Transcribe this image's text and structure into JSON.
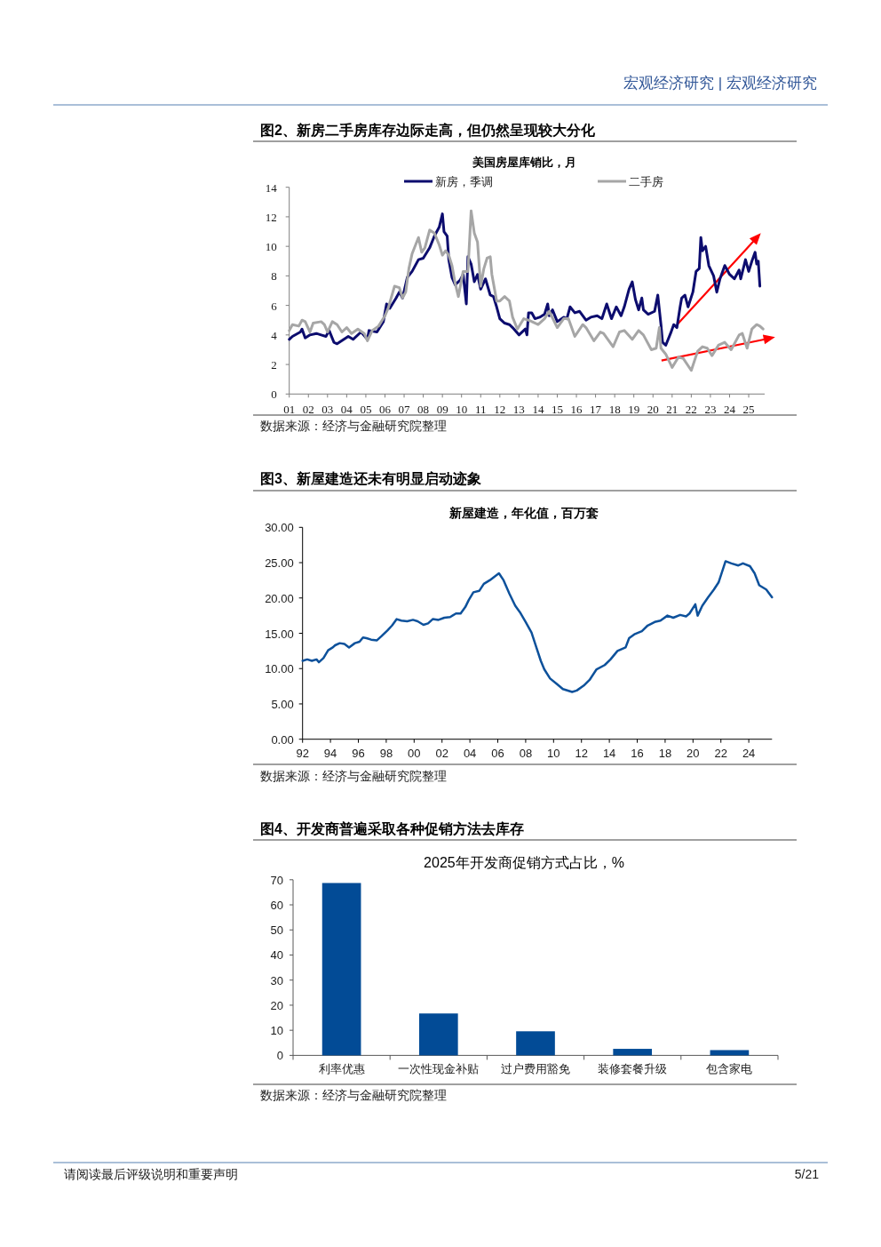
{
  "chart_data": [
    {
      "type": "line",
      "title": "图2、新房二手房库存边际走高，但仍然呈现较大分化",
      "subtitle": "美国房屋库销比，月",
      "legend": "top",
      "series": [
        {
          "name": "新房，季调",
          "color": "#0c0c6e",
          "x": [
            "2001-01",
            "2001-03",
            "2001-08",
            "2001-09",
            "2001-11",
            "2002-02",
            "2002-06",
            "2002-09",
            "2002-12",
            "2003-02",
            "2003-05",
            "2003-07",
            "2004-02",
            "2004-05",
            "2004-10",
            "2005-02",
            "2005-03",
            "2005-08",
            "2005-12",
            "2006-02",
            "2006-04",
            "2006-08",
            "2006-10",
            "2006-12",
            "2007-03",
            "2007-06",
            "2007-10",
            "2008-01",
            "2008-05",
            "2008-08",
            "2008-11",
            "2009-01",
            "2009-02",
            "2009-04",
            "2009-05",
            "2009-07",
            "2009-09",
            "2009-12",
            "2010-02",
            "2010-04",
            "2010-05",
            "2010-07",
            "2010-09",
            "2010-11",
            "2011-01",
            "2011-04",
            "2011-07",
            "2011-09",
            "2011-11",
            "2012-01",
            "2012-04",
            "2012-07",
            "2012-09",
            "2013-01",
            "2013-05",
            "2013-06",
            "2013-07",
            "2013-09",
            "2013-11",
            "2014-02",
            "2014-05",
            "2014-07",
            "2014-08",
            "2014-10",
            "2015-01",
            "2015-05",
            "2015-07",
            "2015-09",
            "2015-12",
            "2016-03",
            "2016-07",
            "2016-10",
            "2017-02",
            "2017-05",
            "2017-08",
            "2017-11",
            "2018-02",
            "2018-05",
            "2018-07",
            "2018-10",
            "2018-12",
            "2019-02",
            "2019-04",
            "2019-06",
            "2019-07",
            "2019-10",
            "2020-02",
            "2020-04",
            "2020-06",
            "2020-07",
            "2020-09",
            "2020-12",
            "2021-02",
            "2021-04",
            "2021-06",
            "2021-07",
            "2021-09",
            "2021-11",
            "2022-02",
            "2022-04",
            "2022-06",
            "2022-07",
            "2022-08",
            "2022-10",
            "2022-12",
            "2023-03",
            "2023-05",
            "2023-07",
            "2023-10",
            "2024-01",
            "2024-04",
            "2024-07",
            "2024-08",
            "2024-11",
            "2025-01",
            "2025-03",
            "2025-05",
            "2025-06",
            "2025-07",
            "2025-08"
          ],
          "values": [
            3.7,
            3.9,
            4.2,
            4.4,
            3.8,
            4.0,
            4.1,
            4.0,
            3.9,
            4.3,
            3.5,
            3.4,
            3.9,
            3.7,
            4.2,
            3.7,
            4.3,
            4.2,
            4.9,
            6.1,
            5.8,
            6.5,
            6.9,
            6.5,
            7.9,
            8.3,
            9.1,
            9.2,
            9.9,
            10.7,
            11.3,
            12.2,
            11.0,
            10.7,
            9.1,
            7.9,
            7.4,
            7.7,
            8.1,
            6.1,
            9.3,
            8.8,
            7.6,
            8.1,
            7.1,
            7.8,
            6.7,
            6.6,
            5.9,
            5.1,
            4.8,
            4.7,
            4.5,
            4.0,
            4.4,
            4.0,
            5.5,
            5.5,
            5.1,
            5.2,
            5.4,
            6.1,
            5.3,
            5.7,
            4.9,
            5.2,
            5.1,
            5.9,
            5.5,
            5.6,
            5.0,
            5.2,
            5.3,
            5.1,
            6.1,
            5.1,
            5.9,
            5.3,
            5.9,
            7.1,
            7.6,
            6.4,
            5.7,
            6.5,
            5.7,
            5.4,
            5.6,
            6.7,
            4.7,
            3.5,
            3.3,
            4.1,
            4.7,
            4.5,
            5.9,
            6.5,
            6.7,
            5.9,
            6.9,
            8.3,
            8.5,
            10.6,
            9.7,
            10.0,
            8.7,
            8.0,
            6.9,
            7.8,
            8.7,
            8.1,
            7.8,
            8.4,
            7.8,
            9.1,
            8.3,
            9.0,
            9.6,
            8.8,
            9.0,
            7.3
          ]
        },
        {
          "name": "二手房",
          "color": "#a6a6a6",
          "x": [
            "2001-01",
            "2001-03",
            "2001-07",
            "2001-09",
            "2001-11",
            "2002-02",
            "2002-04",
            "2002-09",
            "2002-11",
            "2003-01",
            "2003-04",
            "2003-07",
            "2003-10",
            "2004-01",
            "2004-04",
            "2004-08",
            "2004-12",
            "2005-02",
            "2005-05",
            "2005-09",
            "2006-01",
            "2006-03",
            "2006-07",
            "2006-10",
            "2006-12",
            "2007-02",
            "2007-04",
            "2007-06",
            "2007-10",
            "2007-12",
            "2008-02",
            "2008-05",
            "2008-08",
            "2008-11",
            "2009-01",
            "2009-03",
            "2009-05",
            "2009-07",
            "2009-09",
            "2009-11",
            "2010-02",
            "2010-05",
            "2010-07",
            "2010-09",
            "2010-11",
            "2011-01",
            "2011-03",
            "2011-05",
            "2011-07",
            "2011-08",
            "2011-11",
            "2012-01",
            "2012-04",
            "2012-07",
            "2012-09",
            "2012-12",
            "2013-04",
            "2013-07",
            "2014-01",
            "2014-05",
            "2014-08",
            "2015-01",
            "2015-05",
            "2015-08",
            "2015-12",
            "2016-05",
            "2016-07",
            "2016-12",
            "2017-04",
            "2017-06",
            "2017-12",
            "2018-04",
            "2018-07",
            "2018-12",
            "2019-04",
            "2019-07",
            "2019-12",
            "2020-03",
            "2020-05",
            "2020-06",
            "2020-09",
            "2021-01",
            "2021-05",
            "2021-08",
            "2022-01",
            "2022-05",
            "2022-08",
            "2022-11",
            "2023-02",
            "2023-06",
            "2023-10",
            "2024-02",
            "2024-07",
            "2024-09",
            "2024-12",
            "2025-03",
            "2025-06",
            "2025-08",
            "2025-10"
          ],
          "values": [
            4.3,
            4.7,
            4.6,
            5.0,
            4.9,
            4.2,
            4.8,
            4.9,
            4.7,
            4.2,
            4.9,
            4.7,
            4.2,
            4.5,
            4.1,
            4.4,
            4.1,
            3.6,
            4.3,
            4.6,
            5.3,
            5.8,
            7.3,
            7.2,
            6.5,
            6.9,
            8.5,
            9.5,
            10.6,
            9.6,
            9.9,
            11.1,
            10.9,
            10.1,
            9.4,
            9.7,
            9.4,
            8.7,
            7.5,
            6.6,
            8.3,
            8.3,
            12.4,
            10.9,
            10.3,
            7.3,
            8.5,
            9.2,
            9.3,
            8.1,
            6.3,
            6.3,
            6.6,
            6.3,
            5.2,
            4.4,
            5.1,
            5.0,
            4.7,
            5.1,
            5.6,
            4.5,
            5.1,
            5.1,
            3.9,
            4.7,
            4.5,
            3.6,
            4.2,
            4.1,
            3.2,
            4.2,
            4.3,
            3.7,
            4.3,
            4.0,
            3.0,
            3.1,
            4.5,
            3.1,
            2.7,
            1.8,
            2.5,
            2.4,
            1.6,
            2.9,
            3.2,
            3.1,
            2.6,
            3.3,
            3.5,
            3.0,
            4.0,
            4.1,
            3.1,
            4.4,
            4.7,
            4.6,
            4.4
          ]
        }
      ],
      "xlim": [
        "2001-01",
        "2025-11"
      ],
      "xticks": [
        {
          "value": "2001-01",
          "label": "01"
        },
        {
          "value": "2002-01",
          "label": "02"
        },
        {
          "value": "2003-01",
          "label": "03"
        },
        {
          "value": "2004-01",
          "label": "04"
        },
        {
          "value": "2005-01",
          "label": "05"
        },
        {
          "value": "2006-01",
          "label": "06"
        },
        {
          "value": "2007-01",
          "label": "07"
        },
        {
          "value": "2008-01",
          "label": "08"
        },
        {
          "value": "2009-01",
          "label": "09"
        },
        {
          "value": "2010-01",
          "label": "10"
        },
        {
          "value": "2011-01",
          "label": "11"
        },
        {
          "value": "2012-01",
          "label": "12"
        },
        {
          "value": "2013-01",
          "label": "13"
        },
        {
          "value": "2014-01",
          "label": "14"
        },
        {
          "value": "2015-01",
          "label": "15"
        },
        {
          "value": "2016-01",
          "label": "16"
        },
        {
          "value": "2017-01",
          "label": "17"
        },
        {
          "value": "2018-01",
          "label": "18"
        },
        {
          "value": "2019-01",
          "label": "19"
        },
        {
          "value": "2020-01",
          "label": "20"
        },
        {
          "value": "2021-01",
          "label": "21"
        },
        {
          "value": "2022-01",
          "label": "22"
        },
        {
          "value": "2023-01",
          "label": "23"
        },
        {
          "value": "2024-01",
          "label": "24"
        },
        {
          "value": "2025-01",
          "label": "25"
        }
      ],
      "ylim": [
        0,
        14
      ],
      "yticks": [
        0,
        2,
        4,
        6,
        8,
        10,
        12,
        14
      ],
      "annotations": [
        "数据来源：经济与金融研究院整理",
        "宏观经济研究 | 宏观经济研究"
      ]
    },
    {
      "type": "line",
      "title": "图3、新屋建造还未有明显启动迹象",
      "subtitle": "新屋建造，年化值，百万套",
      "color": "#0d519b",
      "x": [
        "1992-01",
        "1992-05",
        "1992-09",
        "1993-01",
        "1993-03",
        "1993-07",
        "1993-11",
        "1994-03",
        "1994-05",
        "1994-09",
        "1995-01",
        "1995-05",
        "1995-10",
        "1996-02",
        "1996-05",
        "1996-08",
        "1996-12",
        "1997-05",
        "1997-09",
        "1998-02",
        "1998-06",
        "1998-10",
        "1999-02",
        "1999-07",
        "1999-12",
        "2000-04",
        "2000-09",
        "2001-01",
        "2001-05",
        "2001-10",
        "2002-03",
        "2002-08",
        "2003-01",
        "2003-05",
        "2003-09",
        "2003-12",
        "2004-04",
        "2004-09",
        "2005-01",
        "2005-06",
        "2005-10",
        "2006-02",
        "2006-06",
        "2006-11",
        "2007-04",
        "2007-08",
        "2008-01",
        "2008-06",
        "2008-09",
        "2009-02",
        "2009-05",
        "2009-10",
        "2010-04",
        "2010-09",
        "2011-05",
        "2011-09",
        "2012-03",
        "2012-08",
        "2013-02",
        "2013-09",
        "2014-02",
        "2014-08",
        "2015-03",
        "2015-06",
        "2015-11",
        "2016-05",
        "2016-10",
        "2017-04",
        "2017-09",
        "2018-03",
        "2018-08",
        "2019-02",
        "2019-07",
        "2019-10",
        "2020-03",
        "2020-05",
        "2020-09",
        "2021-02",
        "2021-07",
        "2021-11",
        "2022-02",
        "2022-05",
        "2022-10",
        "2023-04",
        "2023-08",
        "2024-02",
        "2024-06",
        "2024-10",
        "2025-04",
        "2025-09"
      ],
      "values": [
        11.1,
        11.3,
        11.1,
        11.3,
        10.9,
        11.5,
        12.6,
        13.0,
        13.3,
        13.6,
        13.5,
        13.0,
        13.6,
        13.8,
        14.4,
        14.3,
        14.1,
        14.0,
        14.6,
        15.4,
        16.1,
        17.0,
        16.8,
        16.7,
        16.9,
        16.7,
        16.2,
        16.4,
        17.0,
        16.9,
        17.2,
        17.3,
        17.8,
        17.8,
        18.7,
        19.7,
        20.8,
        21.0,
        22.0,
        22.5,
        23.0,
        23.5,
        22.5,
        20.6,
        18.9,
        18.0,
        16.6,
        15.1,
        13.6,
        11.1,
        9.9,
        8.6,
        7.8,
        7.1,
        6.7,
        6.9,
        7.6,
        8.4,
        9.9,
        10.5,
        11.3,
        12.5,
        13.0,
        14.3,
        14.9,
        15.3,
        16.1,
        16.6,
        16.8,
        17.5,
        17.2,
        17.6,
        17.4,
        17.8,
        19.1,
        17.5,
        18.9,
        20.1,
        21.2,
        22.2,
        23.7,
        25.2,
        24.9,
        24.6,
        24.9,
        24.5,
        23.5,
        21.8,
        21.2,
        20.1
      ],
      "xlim": [
        "1992-01",
        "2025-09"
      ],
      "xticks": [
        {
          "value": "1992-01",
          "label": "92"
        },
        {
          "value": "1994-01",
          "label": "94"
        },
        {
          "value": "1996-01",
          "label": "96"
        },
        {
          "value": "1998-01",
          "label": "98"
        },
        {
          "value": "2000-01",
          "label": "00"
        },
        {
          "value": "2002-01",
          "label": "02"
        },
        {
          "value": "2004-01",
          "label": "04"
        },
        {
          "value": "2006-01",
          "label": "06"
        },
        {
          "value": "2008-01",
          "label": "08"
        },
        {
          "value": "2010-01",
          "label": "10"
        },
        {
          "value": "2012-01",
          "label": "12"
        },
        {
          "value": "2014-01",
          "label": "14"
        },
        {
          "value": "2016-01",
          "label": "16"
        },
        {
          "value": "2018-01",
          "label": "18"
        },
        {
          "value": "2020-01",
          "label": "20"
        },
        {
          "value": "2022-01",
          "label": "22"
        },
        {
          "value": "2024-01",
          "label": "24"
        }
      ],
      "ylim": [
        0,
        30
      ],
      "yticks": [
        {
          "value": 0,
          "label": "0.00"
        },
        {
          "value": 5,
          "label": "5.00"
        },
        {
          "value": 10,
          "label": "10.00"
        },
        {
          "value": 15,
          "label": "15.00"
        },
        {
          "value": 20,
          "label": "20.00"
        },
        {
          "value": 25,
          "label": "25.00"
        },
        {
          "value": 30,
          "label": "30.00"
        }
      ],
      "annotations": [
        "数据来源：经济与金融研究院整理"
      ]
    },
    {
      "type": "bar",
      "title": "图4、开发商普遍采取各种促销方法去库存",
      "subtitle": "2025年开发商促销方式占比，%",
      "color": "#024b96",
      "categories": [
        "利率优惠",
        "一次性现金补贴",
        "过户费用豁免",
        "装修套餐升级",
        "包含家电"
      ],
      "values": [
        68.7,
        16.7,
        9.6,
        2.6,
        2.1
      ],
      "ylim": [
        0,
        70
      ],
      "yticks": [
        0,
        10,
        20,
        30,
        40,
        50,
        60,
        70
      ],
      "annotations": [
        "数据来源：经济与金融研究院整理",
        "请阅读最后评级说明和重要声明",
        "5/21"
      ]
    }
  ]
}
